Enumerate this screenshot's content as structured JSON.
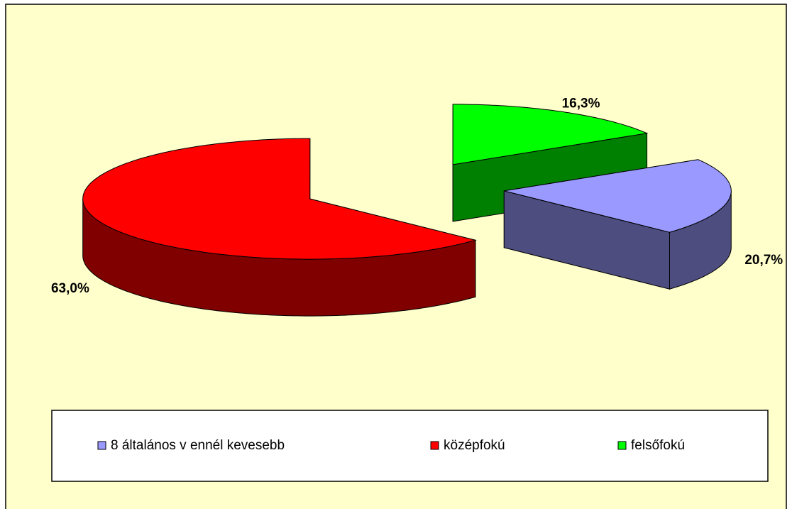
{
  "chart_data": {
    "type": "pie",
    "categories": [
      "8 általános v ennél kevesebb",
      "középfokú",
      "felsőfokú"
    ],
    "values": [
      20.7,
      63.0,
      16.3
    ],
    "value_labels": [
      "20,7%",
      "63,0%",
      "16,3%"
    ],
    "colors": [
      "#9999ff",
      "#ff0000",
      "#00ff00"
    ],
    "legend": "bottom"
  }
}
